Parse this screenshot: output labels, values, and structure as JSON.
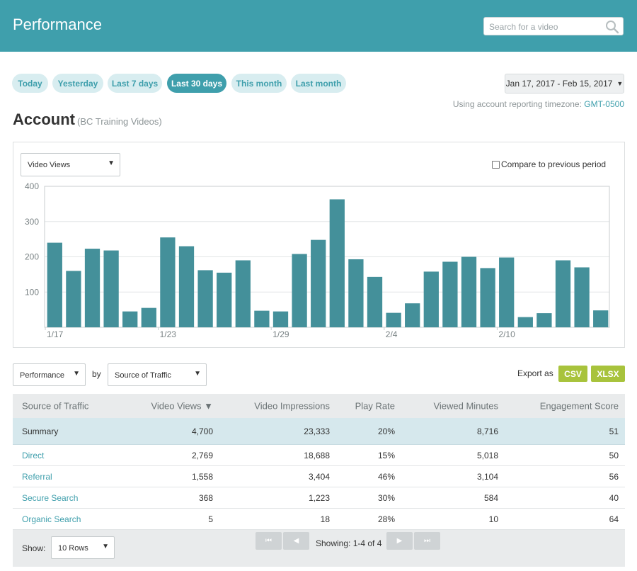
{
  "header": {
    "title": "Performance",
    "search_placeholder": "Search for a video"
  },
  "range_pills": [
    {
      "label": "Today",
      "active": false
    },
    {
      "label": "Yesterday",
      "active": false
    },
    {
      "label": "Last 7 days",
      "active": false
    },
    {
      "label": "Last 30 days",
      "active": true
    },
    {
      "label": "This month",
      "active": false
    },
    {
      "label": "Last month",
      "active": false
    }
  ],
  "date_range": {
    "label": "Jan 17, 2017 - Feb 15, 2017",
    "caret": "▼",
    "tz_prefix": "Using account reporting timezone:",
    "tz_value": "GMT-0500"
  },
  "account": {
    "title": "Account",
    "subtitle": "(BC Training Videos)"
  },
  "chart_controls": {
    "metric_select": "Video Views",
    "compare_label": "Compare to previous period"
  },
  "chart_data": {
    "type": "bar",
    "bar_color": "#44909a",
    "categories": [
      "1/17",
      "1/18",
      "1/19",
      "1/20",
      "1/21",
      "1/22",
      "1/23",
      "1/24",
      "1/25",
      "1/26",
      "1/27",
      "1/28",
      "1/29",
      "1/30",
      "1/31",
      "2/1",
      "2/2",
      "2/3",
      "2/4",
      "2/5",
      "2/6",
      "2/7",
      "2/8",
      "2/9",
      "2/10",
      "2/11",
      "2/12",
      "2/13",
      "2/14",
      "2/15"
    ],
    "tick_labels": [
      "1/17",
      "1/23",
      "1/29",
      "2/4",
      "2/10"
    ],
    "values": [
      240,
      160,
      223,
      218,
      45,
      55,
      255,
      230,
      162,
      155,
      190,
      47,
      45,
      208,
      248,
      363,
      193,
      143,
      41,
      68,
      158,
      186,
      200,
      168,
      198,
      29,
      40,
      190,
      170,
      48
    ],
    "ylim": [
      0,
      400
    ],
    "yticks": [
      100,
      200,
      300,
      400
    ],
    "grid": true,
    "title": "",
    "xlabel": "",
    "ylabel": ""
  },
  "table_controls": {
    "group_select": "Performance",
    "by_label": "by",
    "dimension_select": "Source of Traffic",
    "export_label": "Export as",
    "csv_label": "CSV",
    "xlsx_label": "XLSX"
  },
  "table": {
    "columns": [
      "Source of Traffic",
      "Video Views ▼",
      "Video Impressions",
      "Play Rate",
      "Viewed Minutes",
      "Engagement Score"
    ],
    "summary": [
      "Summary",
      "4,700",
      "23,333",
      "20%",
      "8,716",
      "51"
    ],
    "rows": [
      [
        "Direct",
        "2,769",
        "18,688",
        "15%",
        "5,018",
        "50"
      ],
      [
        "Referral",
        "1,558",
        "3,404",
        "46%",
        "3,104",
        "56"
      ],
      [
        "Secure Search",
        "368",
        "1,223",
        "30%",
        "584",
        "40"
      ],
      [
        "Organic Search",
        "5",
        "18",
        "28%",
        "10",
        "64"
      ]
    ]
  },
  "pagination": {
    "show_label": "Show:",
    "rows_select": "10 Rows",
    "showing_text": "Showing: 1-4 of 4",
    "first_glyph": "⏮",
    "prev_glyph": "◀",
    "next_glyph": "▶",
    "last_glyph": "⏭"
  }
}
